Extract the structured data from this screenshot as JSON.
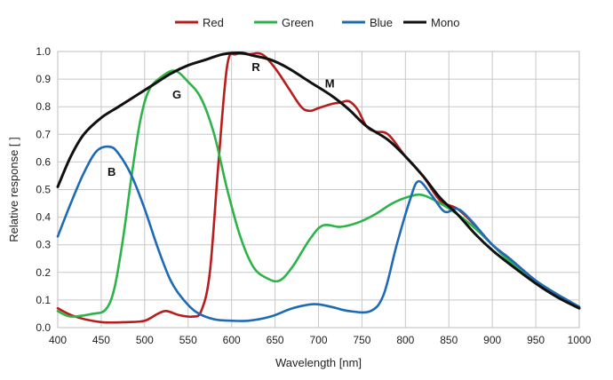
{
  "chart_data": {
    "type": "line",
    "title": "",
    "xlabel": "Wavelength [nm]",
    "ylabel": "Relative response [ ]",
    "xlim": [
      400,
      1000
    ],
    "ylim": [
      0,
      1.0
    ],
    "x_ticks": [
      400,
      450,
      500,
      550,
      600,
      650,
      700,
      750,
      800,
      850,
      900,
      950,
      1000
    ],
    "y_ticks": [
      0.0,
      0.1,
      0.2,
      0.3,
      0.4,
      0.5,
      0.6,
      0.7,
      0.8,
      0.9,
      1.0
    ],
    "x_tick_labels": [
      "400",
      "450",
      "500",
      "550",
      "600",
      "650",
      "700",
      "750",
      "800",
      "850",
      "900",
      "950",
      "1000"
    ],
    "y_tick_labels": [
      "0.0",
      "0.1",
      "0.2",
      "0.3",
      "0.4",
      "0.5",
      "0.6",
      "0.7",
      "0.8",
      "0.9",
      "1.0"
    ],
    "grid": true,
    "legend_position": "top-center",
    "series": [
      {
        "name": "Red",
        "color": "#b81c1c",
        "points": [
          [
            400,
            0.07
          ],
          [
            420,
            0.04
          ],
          [
            450,
            0.02
          ],
          [
            480,
            0.02
          ],
          [
            500,
            0.025
          ],
          [
            515,
            0.05
          ],
          [
            525,
            0.06
          ],
          [
            540,
            0.045
          ],
          [
            555,
            0.04
          ],
          [
            565,
            0.06
          ],
          [
            575,
            0.2
          ],
          [
            585,
            0.6
          ],
          [
            595,
            0.95
          ],
          [
            605,
            0.99
          ],
          [
            620,
            0.99
          ],
          [
            635,
            0.99
          ],
          [
            650,
            0.94
          ],
          [
            665,
            0.87
          ],
          [
            680,
            0.8
          ],
          [
            690,
            0.785
          ],
          [
            700,
            0.795
          ],
          [
            715,
            0.81
          ],
          [
            725,
            0.815
          ],
          [
            735,
            0.82
          ],
          [
            745,
            0.79
          ],
          [
            755,
            0.73
          ],
          [
            765,
            0.71
          ],
          [
            780,
            0.7
          ],
          [
            800,
            0.62
          ],
          [
            820,
            0.55
          ],
          [
            840,
            0.46
          ],
          [
            860,
            0.43
          ],
          [
            880,
            0.37
          ],
          [
            900,
            0.3
          ],
          [
            920,
            0.25
          ],
          [
            950,
            0.17
          ],
          [
            975,
            0.12
          ],
          [
            1000,
            0.075
          ]
        ]
      },
      {
        "name": "Green",
        "color": "#2eb34a",
        "points": [
          [
            400,
            0.06
          ],
          [
            415,
            0.04
          ],
          [
            440,
            0.05
          ],
          [
            455,
            0.065
          ],
          [
            465,
            0.14
          ],
          [
            475,
            0.32
          ],
          [
            485,
            0.55
          ],
          [
            495,
            0.75
          ],
          [
            505,
            0.86
          ],
          [
            520,
            0.91
          ],
          [
            535,
            0.93
          ],
          [
            550,
            0.89
          ],
          [
            565,
            0.83
          ],
          [
            580,
            0.7
          ],
          [
            595,
            0.5
          ],
          [
            610,
            0.33
          ],
          [
            625,
            0.22
          ],
          [
            640,
            0.18
          ],
          [
            655,
            0.17
          ],
          [
            670,
            0.22
          ],
          [
            690,
            0.32
          ],
          [
            705,
            0.37
          ],
          [
            725,
            0.365
          ],
          [
            745,
            0.38
          ],
          [
            765,
            0.41
          ],
          [
            785,
            0.45
          ],
          [
            805,
            0.475
          ],
          [
            820,
            0.48
          ],
          [
            840,
            0.45
          ],
          [
            860,
            0.41
          ],
          [
            880,
            0.36
          ],
          [
            900,
            0.3
          ],
          [
            920,
            0.24
          ],
          [
            950,
            0.17
          ],
          [
            975,
            0.12
          ],
          [
            1000,
            0.075
          ]
        ]
      },
      {
        "name": "Blue",
        "color": "#1f6ab5",
        "points": [
          [
            400,
            0.33
          ],
          [
            415,
            0.45
          ],
          [
            430,
            0.56
          ],
          [
            445,
            0.64
          ],
          [
            460,
            0.655
          ],
          [
            470,
            0.63
          ],
          [
            485,
            0.55
          ],
          [
            500,
            0.43
          ],
          [
            515,
            0.29
          ],
          [
            530,
            0.17
          ],
          [
            545,
            0.1
          ],
          [
            560,
            0.055
          ],
          [
            580,
            0.03
          ],
          [
            600,
            0.025
          ],
          [
            620,
            0.025
          ],
          [
            645,
            0.04
          ],
          [
            670,
            0.07
          ],
          [
            695,
            0.085
          ],
          [
            715,
            0.075
          ],
          [
            735,
            0.06
          ],
          [
            760,
            0.06
          ],
          [
            775,
            0.12
          ],
          [
            790,
            0.3
          ],
          [
            805,
            0.46
          ],
          [
            815,
            0.53
          ],
          [
            830,
            0.48
          ],
          [
            845,
            0.42
          ],
          [
            860,
            0.43
          ],
          [
            875,
            0.39
          ],
          [
            900,
            0.3
          ],
          [
            920,
            0.25
          ],
          [
            950,
            0.17
          ],
          [
            975,
            0.12
          ],
          [
            1000,
            0.075
          ]
        ]
      },
      {
        "name": "Mono",
        "color": "#111111",
        "points": [
          [
            400,
            0.51
          ],
          [
            415,
            0.62
          ],
          [
            430,
            0.7
          ],
          [
            450,
            0.76
          ],
          [
            470,
            0.8
          ],
          [
            490,
            0.84
          ],
          [
            510,
            0.88
          ],
          [
            530,
            0.92
          ],
          [
            550,
            0.95
          ],
          [
            570,
            0.97
          ],
          [
            590,
            0.99
          ],
          [
            610,
            0.995
          ],
          [
            625,
            0.985
          ],
          [
            645,
            0.97
          ],
          [
            665,
            0.94
          ],
          [
            690,
            0.89
          ],
          [
            715,
            0.84
          ],
          [
            735,
            0.79
          ],
          [
            755,
            0.73
          ],
          [
            780,
            0.68
          ],
          [
            800,
            0.62
          ],
          [
            820,
            0.55
          ],
          [
            840,
            0.47
          ],
          [
            860,
            0.41
          ],
          [
            880,
            0.34
          ],
          [
            900,
            0.28
          ],
          [
            920,
            0.23
          ],
          [
            950,
            0.16
          ],
          [
            975,
            0.11
          ],
          [
            1000,
            0.07
          ]
        ]
      }
    ],
    "annotations": [
      {
        "text": "R",
        "x": 628,
        "y": 0.93
      },
      {
        "text": "G",
        "x": 537,
        "y": 0.83
      },
      {
        "text": "B",
        "x": 462,
        "y": 0.55
      },
      {
        "text": "M",
        "x": 713,
        "y": 0.87
      }
    ]
  }
}
